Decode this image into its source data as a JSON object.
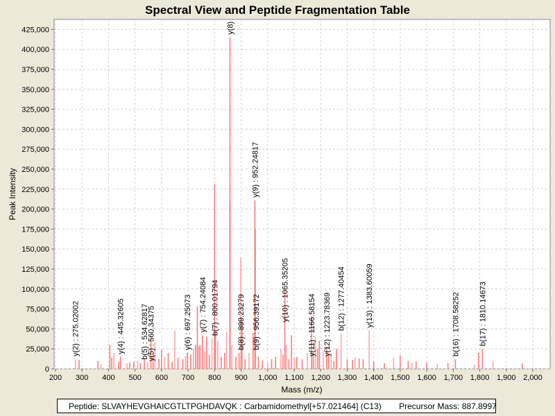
{
  "chart_data": {
    "type": "bar",
    "title": "Spectral View and Peptide Fragmentation Table",
    "xlabel": "Mass (m/z)",
    "ylabel": "Peak Intensity",
    "xlim": [
      200,
      2000
    ],
    "ylim": [
      0,
      437500
    ],
    "x_ticks": [
      200,
      300,
      400,
      500,
      600,
      700,
      800,
      900,
      1000,
      1100,
      1200,
      1300,
      1400,
      1500,
      1600,
      1700,
      1800,
      1900,
      2000
    ],
    "y_ticks": [
      0,
      25000,
      50000,
      75000,
      100000,
      125000,
      150000,
      175000,
      200000,
      225000,
      250000,
      275000,
      300000,
      325000,
      350000,
      375000,
      400000,
      425000
    ],
    "grid": true,
    "colors": {
      "peak": "#ff6a6a",
      "annotated_peak": "#ff3030",
      "grid": "#d0d0d0",
      "plot_bg": "#ffffff"
    },
    "peaks": [
      [
        275,
        12000
      ],
      [
        289,
        11000
      ],
      [
        360,
        10000
      ],
      [
        372,
        6000
      ],
      [
        405,
        30000
      ],
      [
        412,
        14000
      ],
      [
        420,
        20000
      ],
      [
        438,
        9000
      ],
      [
        445,
        15000
      ],
      [
        470,
        7000
      ],
      [
        480,
        8000
      ],
      [
        495,
        9000
      ],
      [
        510,
        10000
      ],
      [
        520,
        7000
      ],
      [
        535,
        12000
      ],
      [
        548,
        9000
      ],
      [
        560,
        38000
      ],
      [
        568,
        20000
      ],
      [
        575,
        33000
      ],
      [
        590,
        12000
      ],
      [
        600,
        24000
      ],
      [
        612,
        15000
      ],
      [
        625,
        20000
      ],
      [
        640,
        9000
      ],
      [
        650,
        48000
      ],
      [
        662,
        14000
      ],
      [
        680,
        12000
      ],
      [
        690,
        16000
      ],
      [
        697,
        20000
      ],
      [
        710,
        18000
      ],
      [
        720,
        25000
      ],
      [
        728,
        30000
      ],
      [
        735,
        78000
      ],
      [
        740,
        28000
      ],
      [
        745,
        30000
      ],
      [
        754,
        42000
      ],
      [
        762,
        22000
      ],
      [
        770,
        40000
      ],
      [
        780,
        18000
      ],
      [
        790,
        38000
      ],
      [
        800,
        231000
      ],
      [
        803,
        45000
      ],
      [
        812,
        35000
      ],
      [
        825,
        15000
      ],
      [
        838,
        20000
      ],
      [
        845,
        46000
      ],
      [
        858,
        415000
      ],
      [
        858,
        210000
      ],
      [
        865,
        30000
      ],
      [
        880,
        15000
      ],
      [
        892,
        20000
      ],
      [
        899,
        139000
      ],
      [
        903,
        61000
      ],
      [
        915,
        12000
      ],
      [
        930,
        20000
      ],
      [
        945,
        45000
      ],
      [
        952,
        211000
      ],
      [
        954,
        175000
      ],
      [
        965,
        15000
      ],
      [
        980,
        10000
      ],
      [
        1000,
        8000
      ],
      [
        1015,
        12000
      ],
      [
        1030,
        15000
      ],
      [
        1050,
        25000
      ],
      [
        1058,
        18000
      ],
      [
        1065,
        99000
      ],
      [
        1070,
        30000
      ],
      [
        1080,
        12000
      ],
      [
        1090,
        42000
      ],
      [
        1100,
        14000
      ],
      [
        1110,
        15000
      ],
      [
        1130,
        12000
      ],
      [
        1150,
        20000
      ],
      [
        1166,
        66000
      ],
      [
        1172,
        20000
      ],
      [
        1180,
        40000
      ],
      [
        1188,
        25000
      ],
      [
        1195,
        35000
      ],
      [
        1210,
        22000
      ],
      [
        1223,
        28000
      ],
      [
        1230,
        18000
      ],
      [
        1240,
        20000
      ],
      [
        1250,
        10000
      ],
      [
        1260,
        25000
      ],
      [
        1277,
        44000
      ],
      [
        1300,
        12000
      ],
      [
        1320,
        11000
      ],
      [
        1330,
        14000
      ],
      [
        1345,
        13000
      ],
      [
        1360,
        12000
      ],
      [
        1383,
        48000
      ],
      [
        1400,
        9000
      ],
      [
        1440,
        7000
      ],
      [
        1475,
        14000
      ],
      [
        1500,
        17000
      ],
      [
        1530,
        10000
      ],
      [
        1545,
        8000
      ],
      [
        1560,
        9000
      ],
      [
        1600,
        8000
      ],
      [
        1640,
        6000
      ],
      [
        1680,
        7000
      ],
      [
        1708,
        12000
      ],
      [
        1780,
        5000
      ],
      [
        1795,
        20000
      ],
      [
        1810,
        25000
      ],
      [
        1850,
        10000
      ],
      [
        1960,
        7000
      ]
    ],
    "annotations": [
      {
        "mz": 275,
        "intensity": 12000,
        "label": "y(2) : 275.02002"
      },
      {
        "mz": 445,
        "intensity": 15000,
        "label": "y(4) : 445.32605"
      },
      {
        "mz": 535,
        "intensity": 8000,
        "label": "b(5) : 534.62817"
      },
      {
        "mz": 560,
        "intensity": 6000,
        "label": "y(5) : 560.34375"
      },
      {
        "mz": 697,
        "intensity": 20000,
        "label": "y(6) : 697.25073"
      },
      {
        "mz": 754,
        "intensity": 42000,
        "label": "y(7) : 754.24084"
      },
      {
        "mz": 800,
        "intensity": 38000,
        "label": "b(7) : 800.01794"
      },
      {
        "mz": 858,
        "intensity": 415000,
        "label": "y(8) :"
      },
      {
        "mz": 899,
        "intensity": 20000,
        "label": "b(8) : 899.23279"
      },
      {
        "mz": 956,
        "intensity": 20000,
        "label": "b(9) : 956.39172"
      },
      {
        "mz": 952,
        "intensity": 211000,
        "label": "y(9) : 952.24817"
      },
      {
        "mz": 1065,
        "intensity": 55000,
        "label": "y(10) : 1065.35205"
      },
      {
        "mz": 1166,
        "intensity": 12000,
        "label": "y(11) : 1166.58154"
      },
      {
        "mz": 1223,
        "intensity": 12000,
        "label": "y(12) : 1223.78369"
      },
      {
        "mz": 1277,
        "intensity": 44000,
        "label": "b(12) : 1277.40454"
      },
      {
        "mz": 1383,
        "intensity": 48000,
        "label": "y(13) : 1383.60059"
      },
      {
        "mz": 1708,
        "intensity": 12000,
        "label": "b(16) : 1708.58252"
      },
      {
        "mz": 1810,
        "intensity": 25000,
        "label": "b(17) : 1810.14673"
      }
    ]
  },
  "footer": {
    "peptide": "Peptide: SLVAYHEVGHAICGTLTPGHDAVQK : Carbamidomethyl[+57.021464] (C13)",
    "precursor": "Precursor Mass: 887.8997"
  }
}
